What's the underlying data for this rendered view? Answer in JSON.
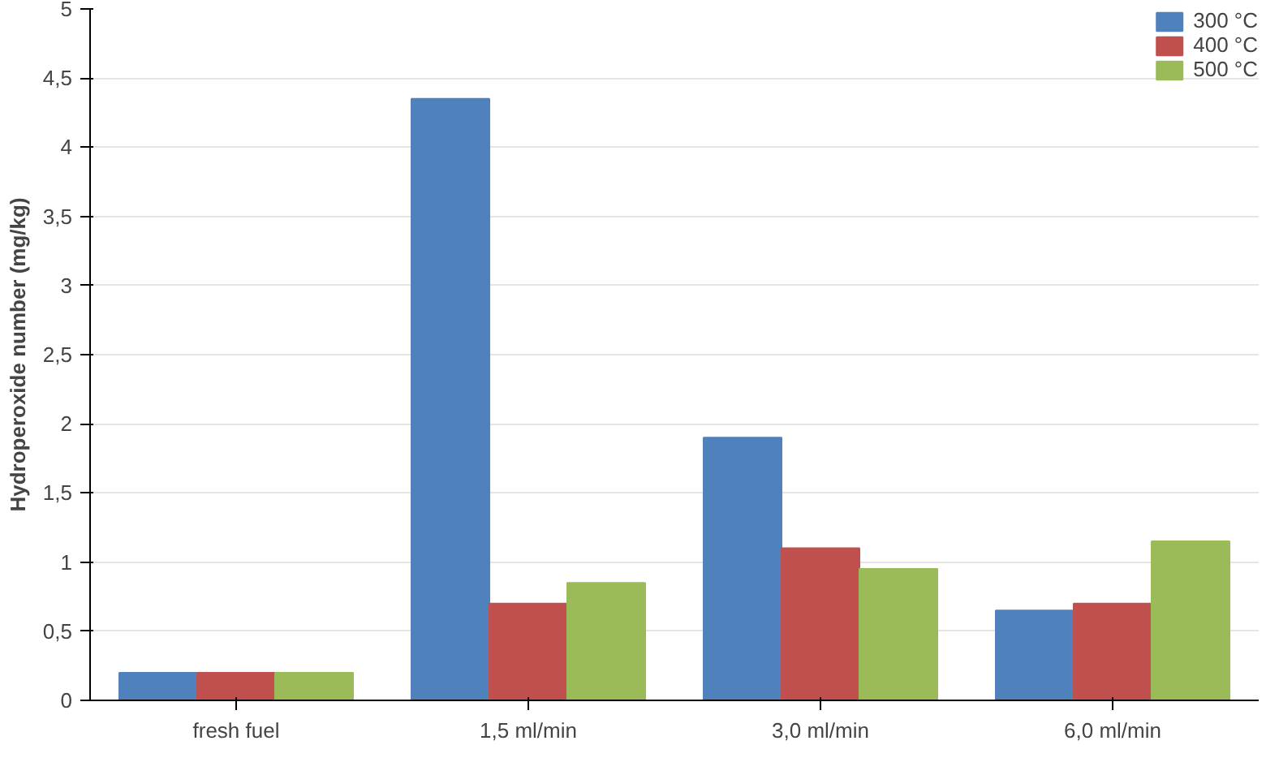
{
  "chart_data": {
    "type": "bar",
    "ylabel": "Hydroperoxide number (mg/kg)",
    "categories": [
      "fresh fuel",
      "1,5 ml/min",
      "3,0 ml/min",
      "6,0 ml/min"
    ],
    "series": [
      {
        "name": "300 °C",
        "color": "#4f81bd",
        "values": [
          0.2,
          4.35,
          1.9,
          0.65
        ]
      },
      {
        "name": "400 °C",
        "color": "#c0504d",
        "values": [
          0.2,
          0.7,
          1.1,
          0.7
        ]
      },
      {
        "name": "500 °C",
        "color": "#9bbb59",
        "values": [
          0.2,
          0.85,
          0.95,
          1.15
        ]
      }
    ],
    "ylim": [
      0,
      5
    ],
    "yticks": [
      0,
      {
        "value": 0.5,
        "label": "0,5"
      },
      1,
      {
        "value": 1.5,
        "label": "1,5"
      },
      2,
      {
        "value": 2.5,
        "label": "2,5"
      },
      3,
      {
        "value": 3.5,
        "label": "3,5"
      },
      4,
      {
        "value": 4.5,
        "label": "4,5"
      },
      5
    ],
    "grid": "y",
    "legend": "top right"
  }
}
